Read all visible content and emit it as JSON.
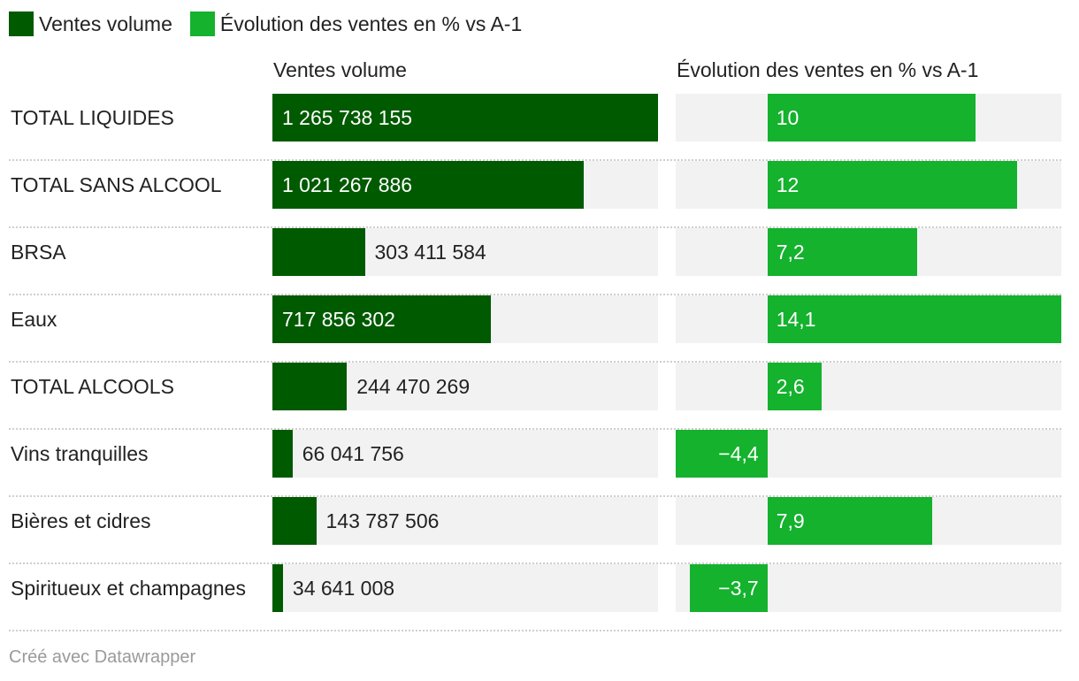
{
  "legend": [
    {
      "label": "Ventes volume",
      "color": "#005a00"
    },
    {
      "label": "Évolution des ventes en % vs A-1",
      "color": "#14b22d"
    }
  ],
  "footer": "Créé avec Datawrapper",
  "chart_data": {
    "type": "bar",
    "orientation": "horizontal",
    "categories": [
      "TOTAL LIQUIDES",
      "TOTAL SANS ALCOOL",
      "BRSA",
      "Eaux",
      "TOTAL ALCOOLS",
      "Vins tranquilles",
      "Bières et cidres",
      "Spiritueux et champagnes"
    ],
    "series": [
      {
        "name": "Ventes volume",
        "title": "Ventes volume",
        "color": "#005a00",
        "values": [
          1265738155,
          1021267886,
          303411584,
          717856302,
          244470269,
          66041756,
          143787506,
          34641008
        ],
        "labels": [
          "1 265 738 155",
          "1 021 267 886",
          "303 411 584",
          "717 856 302",
          "244 470 269",
          "66 041 756",
          "143 787 506",
          "34 641 008"
        ],
        "xlim": [
          0,
          1265738155
        ]
      },
      {
        "name": "Évolution des ventes en % vs A-1",
        "title": "Évolution des ventes en % vs A-1",
        "color": "#14b22d",
        "values": [
          10,
          12,
          7.2,
          14.1,
          2.6,
          -4.4,
          7.9,
          -3.7
        ],
        "labels": [
          "10",
          "12",
          "7,2",
          "14,1",
          "2,6",
          "−4,4",
          "7,9",
          "−3,7"
        ],
        "xlim": [
          -4.4,
          14.1
        ]
      }
    ]
  }
}
